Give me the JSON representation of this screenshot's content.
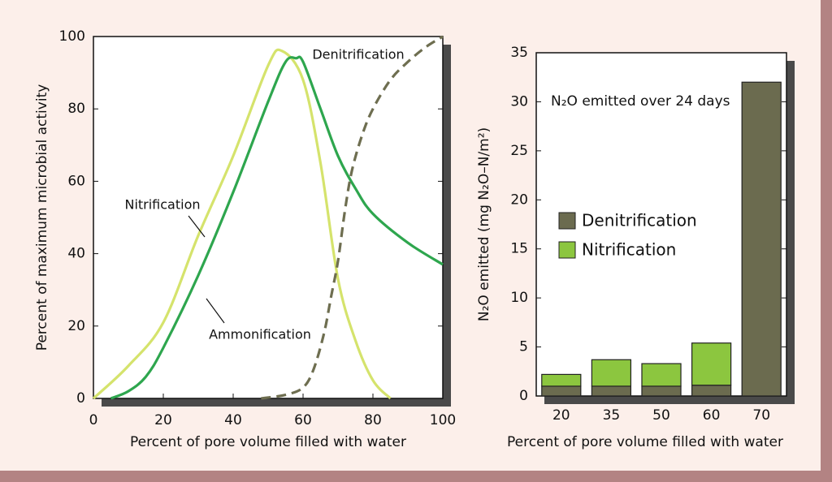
{
  "chart_data": [
    {
      "type": "line",
      "x_label": "Percent of pore volume filled with water",
      "y_label": "Percent of maximum microbial activity",
      "xlim": [
        0,
        100
      ],
      "ylim": [
        0,
        100
      ],
      "xticks": [
        0,
        20,
        40,
        60,
        80,
        100
      ],
      "yticks": [
        0,
        20,
        40,
        60,
        80,
        100
      ],
      "series": [
        {
          "name": "Nitrification",
          "color": "#d5e36c",
          "style": "solid",
          "x": [
            0,
            10,
            20,
            30,
            40,
            50,
            54,
            60,
            65,
            70,
            75,
            80,
            85
          ],
          "values": [
            0,
            9,
            21,
            45,
            67,
            92,
            96,
            88,
            65,
            33,
            16,
            5,
            0
          ]
        },
        {
          "name": "Ammonification",
          "color": "#2ea64e",
          "style": "solid",
          "x": [
            5,
            10,
            15,
            20,
            30,
            40,
            50,
            55,
            58,
            60,
            65,
            70,
            75,
            80,
            90,
            100
          ],
          "values": [
            0,
            2,
            6,
            14,
            34,
            57,
            82,
            93,
            94,
            93,
            80,
            67,
            58,
            51,
            43,
            37
          ]
        },
        {
          "name": "Denitrification",
          "color": "#6e6e50",
          "style": "dashed",
          "x": [
            48,
            55,
            60,
            63,
            66,
            68,
            70,
            72,
            74,
            77,
            80,
            85,
            90,
            95,
            100
          ],
          "values": [
            0,
            1,
            3,
            8,
            18,
            28,
            38,
            52,
            63,
            73,
            80,
            88,
            93,
            97,
            100
          ]
        }
      ]
    },
    {
      "type": "bar",
      "stacked": true,
      "x_label": "Percent of pore volume filled with water",
      "y_label": "N₂O emitted (mg N₂O–N/m²)",
      "annotation": "N₂O emitted over 24 days",
      "legend": "center-left",
      "ylim": [
        0,
        35
      ],
      "yticks": [
        0,
        5,
        10,
        15,
        20,
        25,
        30,
        35
      ],
      "categories": [
        "20",
        "35",
        "50",
        "60",
        "70"
      ],
      "series": [
        {
          "name": "Denitrification",
          "color": "#6b6b4f",
          "values": [
            1,
            1,
            1,
            1.1,
            32
          ]
        },
        {
          "name": "Nitrification",
          "color": "#8cc63f",
          "values": [
            1.2,
            2.7,
            2.3,
            4.3,
            0
          ]
        }
      ]
    }
  ]
}
